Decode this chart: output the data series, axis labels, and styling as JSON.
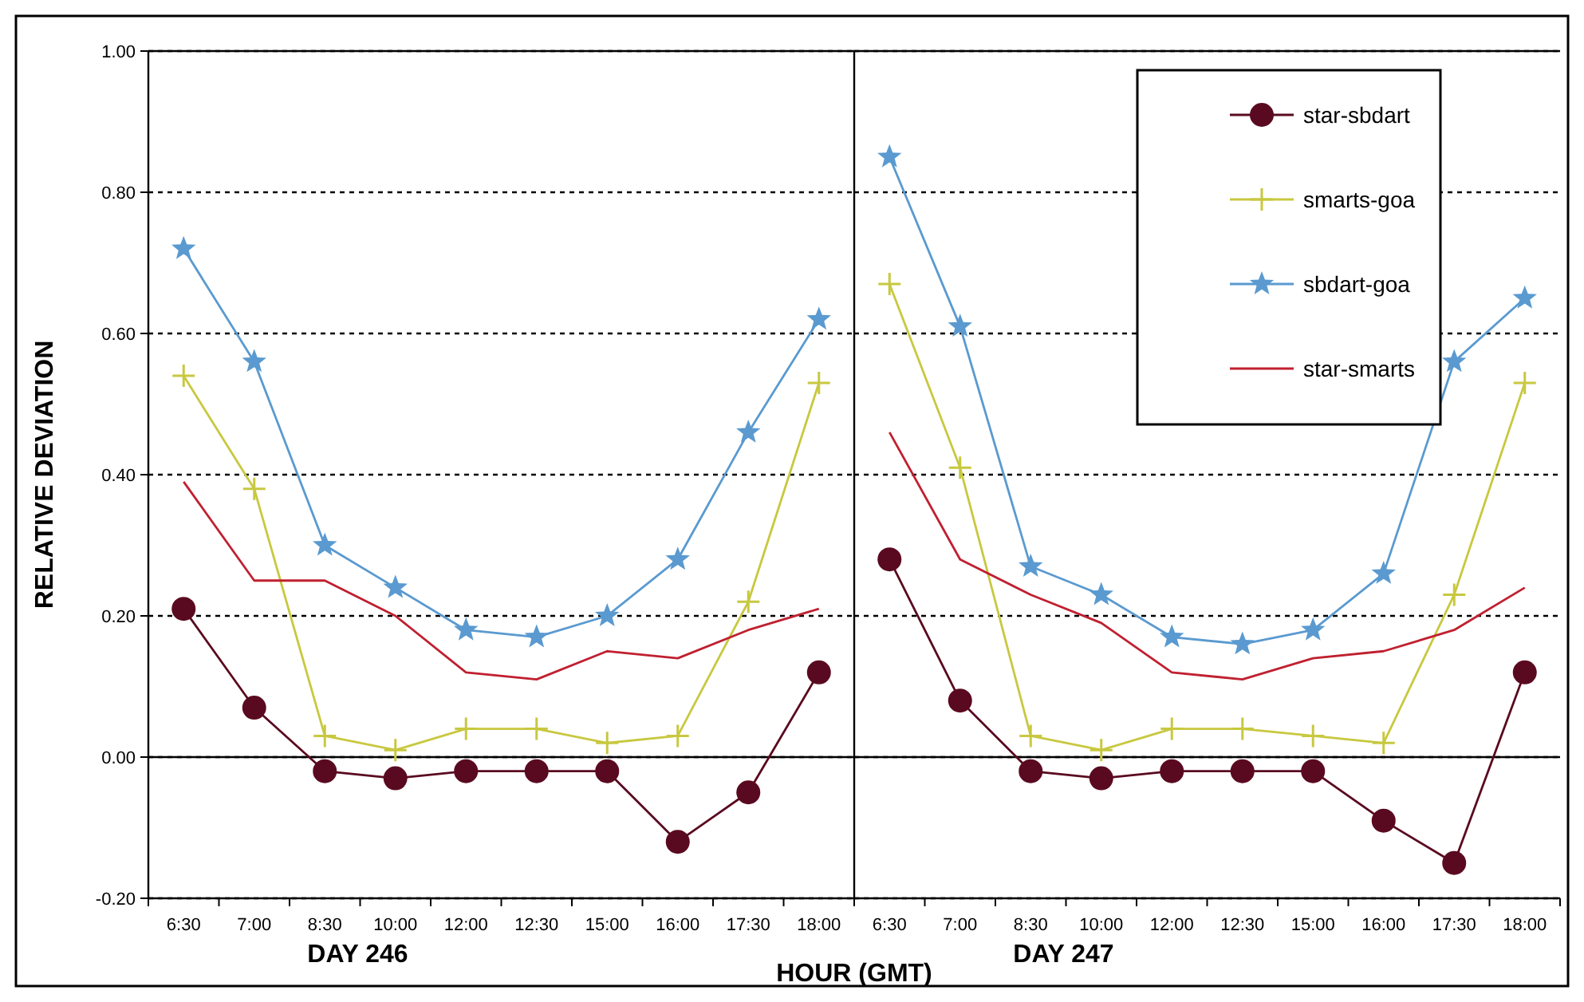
{
  "chart_data": [
    {
      "type": "line",
      "ylabel": "RELATIVE DEVIATION",
      "xlabel": "DAY 246",
      "annotations": [
        "HOUR (GMT)"
      ],
      "categories": [
        "6:30",
        "7:00",
        "8:30",
        "10:00",
        "12:00",
        "12:30",
        "15:00",
        "16:00",
        "17:30",
        "18:00"
      ],
      "ylim": [
        -0.2,
        1.0
      ],
      "yticks": [
        {
          "value": -0.2,
          "label": "-0.20"
        },
        {
          "value": 0,
          "label": "0.00"
        },
        {
          "value": 0.2,
          "label": "0.20"
        },
        {
          "value": 0.4,
          "label": "0.40"
        },
        {
          "value": 0.6,
          "label": "0.60"
        },
        {
          "value": 0.8,
          "label": "0.80"
        },
        {
          "value": 1.0,
          "label": "1.00"
        }
      ],
      "grid": "y",
      "legend": false,
      "series": [
        {
          "color": "#5a0a20",
          "marker": "circle",
          "values": [
            0.21,
            0.07,
            -0.02,
            -0.03,
            -0.02,
            -0.02,
            -0.02,
            -0.12,
            -0.05,
            0.12
          ]
        },
        {
          "color": "#c8c840",
          "marker": "cross",
          "values": [
            0.54,
            0.38,
            0.03,
            0.01,
            0.04,
            0.04,
            0.02,
            0.03,
            0.22,
            0.53
          ]
        },
        {
          "color": "#5a9ad0",
          "marker": "star",
          "values": [
            0.72,
            0.56,
            0.3,
            0.24,
            0.18,
            0.17,
            0.2,
            0.28,
            0.46,
            0.62
          ]
        },
        {
          "color": "#c02030",
          "marker": "none",
          "values": [
            0.39,
            0.25,
            0.25,
            0.2,
            0.12,
            0.11,
            0.15,
            0.14,
            0.18,
            0.21
          ]
        }
      ]
    },
    {
      "type": "line",
      "xlabel": "DAY 247",
      "categories": [
        "6:30",
        "7:00",
        "8:30",
        "10:00",
        "12:00",
        "12:30",
        "15:00",
        "16:00",
        "17:30",
        "18:00"
      ],
      "ylim": [
        -0.2,
        1.0
      ],
      "yticks": [
        {
          "value": -0.2,
          "label": null
        },
        {
          "value": 0,
          "label": null
        },
        {
          "value": 0.2,
          "label": null
        },
        {
          "value": 0.4,
          "label": null
        },
        {
          "value": 0.6,
          "label": null
        },
        {
          "value": 0.8,
          "label": null
        },
        {
          "value": 1.0,
          "label": null
        }
      ],
      "tick_labels": "x",
      "grid": "y",
      "legend": "top right",
      "series": [
        {
          "name": "star-sbdart",
          "color": "#5a0a20",
          "marker": "circle",
          "values": [
            0.28,
            0.08,
            -0.02,
            -0.03,
            -0.02,
            -0.02,
            -0.02,
            -0.09,
            -0.15,
            0.12
          ]
        },
        {
          "name": "smarts-goa",
          "color": "#c8c840",
          "marker": "cross",
          "values": [
            0.67,
            0.41,
            0.03,
            0.01,
            0.04,
            0.04,
            0.03,
            0.02,
            0.23,
            0.53
          ]
        },
        {
          "name": "sbdart-goa",
          "color": "#5a9ad0",
          "marker": "star",
          "values": [
            0.85,
            0.61,
            0.27,
            0.23,
            0.17,
            0.16,
            0.18,
            0.26,
            0.56,
            0.65
          ]
        },
        {
          "name": "star-smarts",
          "color": "#c02030",
          "marker": "none",
          "values": [
            0.46,
            0.28,
            0.23,
            0.19,
            0.12,
            0.11,
            0.14,
            0.15,
            0.18,
            0.24
          ]
        }
      ]
    }
  ]
}
